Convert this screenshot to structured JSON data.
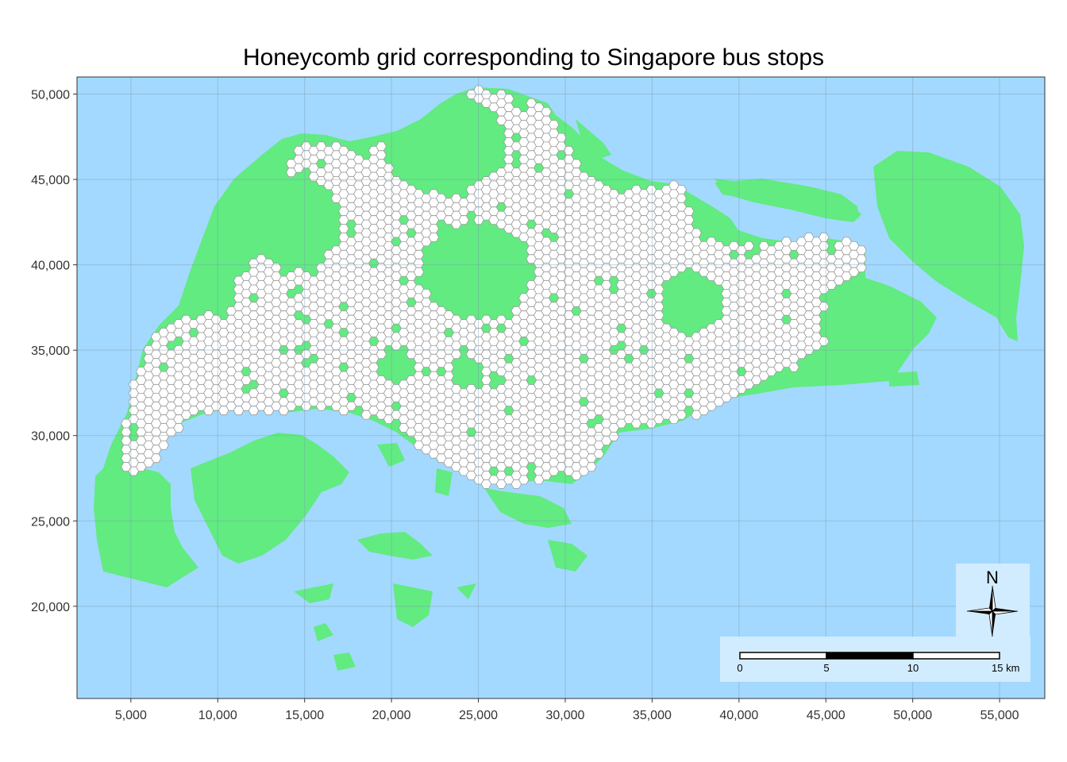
{
  "title": "Honeycomb grid corresponding to Singapore bus stops",
  "colors": {
    "sea": "#a3d9ff",
    "land": "#61eb81",
    "hex_fill": "#ffffff",
    "hex_stroke": "#9a9a9a",
    "grid": "#7d9bb0",
    "panel_border": "#333333",
    "overlay": "#d2ecff"
  },
  "axes": {
    "x_ticks": [
      "5,000",
      "10,000",
      "15,000",
      "20,000",
      "25,000",
      "30,000",
      "35,000",
      "40,000",
      "45,000",
      "50,000",
      "55,000"
    ],
    "y_ticks": [
      "50,000",
      "45,000",
      "40,000",
      "35,000",
      "30,000",
      "25,000",
      "20,000"
    ],
    "x_values": [
      5000,
      10000,
      15000,
      20000,
      25000,
      30000,
      35000,
      40000,
      45000,
      50000,
      55000
    ],
    "y_values": [
      50000,
      45000,
      40000,
      35000,
      30000,
      25000,
      20000
    ],
    "xlim": [
      1900,
      57600
    ],
    "ylim": [
      14600,
      51000
    ]
  },
  "scale_bar": {
    "labels": [
      "0",
      "5",
      "10",
      "15 km"
    ],
    "unit": "km"
  },
  "north_arrow": {
    "label": "N",
    "icon": "compass-rose-icon"
  },
  "chart_data": {
    "type": "map",
    "title": "Honeycomb grid corresponding to Singapore bus stops",
    "layers": [
      "sea",
      "land (Singapore)",
      "hexagonal grid cells containing bus stops"
    ],
    "hex_cell_size_m": 500,
    "xlim": [
      1900,
      57600
    ],
    "ylim": [
      14600,
      51000
    ],
    "grid": true,
    "scale_bar_km": [
      0,
      5,
      10,
      15
    ]
  }
}
